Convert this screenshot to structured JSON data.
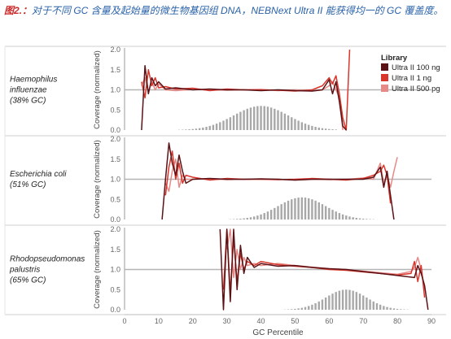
{
  "caption": {
    "prefix": "图2.：",
    "text": "对于不同 GC 含量及起始量的微生物基因组 DNA，NEBNext Ultra II 能获得均一的 GC 覆盖度。"
  },
  "chart_data": {
    "type": "line",
    "xlabel": "GC Percentile",
    "ylabel": "Coverage (normalized)",
    "xlim": [
      0,
      90
    ],
    "xticks": [
      "0",
      "10",
      "20",
      "30",
      "40",
      "50",
      "60",
      "70",
      "80",
      "90"
    ],
    "ylim": [
      0,
      2.0
    ],
    "yticks": [
      "0.0",
      "0.5",
      "1.0",
      "1.5",
      "2.0"
    ],
    "reference_line": 1.0,
    "grid": false,
    "legend": {
      "title": "Library",
      "placement": "top-right",
      "entries": [
        "Ultra II 100 ng",
        "Ultra II 1 ng",
        "Ultra II 500 pg"
      ]
    },
    "colors": {
      "Ultra II 100 ng": "#5a1216",
      "Ultra II 1 ng": "#d8362c",
      "Ultra II 500 pg": "#e58a86",
      "histogram": "#a8a8a8",
      "reference": "#b5b5b5"
    },
    "panels": [
      {
        "organism": "Haemophilus influenzae",
        "gc": "(38% GC)",
        "histogram": {
          "mean": 40,
          "sd": 8,
          "range": [
            10,
            62
          ],
          "peak": 0.6
        },
        "series": [
          {
            "name": "Ultra II 100 ng",
            "x": [
              5,
              6,
              7,
              8,
              9,
              10,
              12,
              15,
              20,
              25,
              30,
              35,
              40,
              45,
              50,
              55,
              58,
              60,
              61,
              62,
              63,
              64,
              65
            ],
            "y": [
              0.0,
              1.6,
              0.9,
              1.3,
              1.1,
              1.2,
              1.02,
              1.05,
              1.0,
              1.02,
              1.0,
              1.0,
              0.98,
              1.0,
              0.98,
              0.97,
              1.0,
              1.25,
              0.9,
              1.2,
              0.7,
              0.1,
              0.0
            ]
          },
          {
            "name": "Ultra II 1 ng",
            "x": [
              5,
              6,
              7,
              8,
              9,
              10,
              12,
              15,
              20,
              25,
              30,
              35,
              40,
              45,
              50,
              55,
              58,
              60,
              61,
              62,
              63,
              64,
              65,
              66
            ],
            "y": [
              1.2,
              0.8,
              1.5,
              1.1,
              1.3,
              1.05,
              1.08,
              1.02,
              1.04,
              0.98,
              1.02,
              1.0,
              1.0,
              0.99,
              0.97,
              1.0,
              1.1,
              1.3,
              1.15,
              1.35,
              0.9,
              0.3,
              0.0,
              2.0
            ]
          },
          {
            "name": "Ultra II 500 pg",
            "x": [
              5,
              6,
              7,
              8,
              9,
              10,
              12,
              15,
              20,
              25,
              30,
              35,
              40,
              45,
              50,
              55,
              58,
              60,
              61,
              62,
              63,
              64
            ],
            "y": [
              1.1,
              1.3,
              0.95,
              1.2,
              1.0,
              1.15,
              1.0,
              0.98,
              1.01,
              1.0,
              0.99,
              1.0,
              1.01,
              0.98,
              1.0,
              0.97,
              1.0,
              1.1,
              1.2,
              1.0,
              0.8,
              0.0
            ]
          }
        ]
      },
      {
        "organism": "Escherichia coli",
        "gc": "(51% GC)",
        "histogram": {
          "mean": 52,
          "sd": 7,
          "range": [
            20,
            78
          ],
          "peak": 0.55
        },
        "series": [
          {
            "name": "Ultra II 100 ng",
            "x": [
              11,
              12,
              13,
              14,
              15,
              16,
              17,
              18,
              20,
              25,
              30,
              35,
              40,
              45,
              50,
              55,
              60,
              65,
              70,
              73,
              75,
              76,
              77,
              78,
              79
            ],
            "y": [
              0.0,
              1.0,
              1.9,
              1.4,
              1.1,
              1.6,
              1.2,
              0.9,
              1.0,
              1.02,
              1.0,
              1.0,
              1.01,
              1.0,
              0.98,
              1.0,
              1.0,
              1.0,
              1.0,
              1.05,
              1.3,
              0.8,
              1.2,
              0.6,
              0.0
            ]
          },
          {
            "name": "Ultra II 1 ng",
            "x": [
              12,
              13,
              14,
              15,
              16,
              17,
              18,
              20,
              25,
              30,
              35,
              40,
              45,
              50,
              55,
              60,
              65,
              70,
              73,
              75,
              76,
              77,
              78
            ],
            "y": [
              0.6,
              1.3,
              1.7,
              1.0,
              1.4,
              0.9,
              1.1,
              1.05,
              0.98,
              1.02,
              1.0,
              1.0,
              0.99,
              1.0,
              1.02,
              1.0,
              0.98,
              1.02,
              1.1,
              1.2,
              1.35,
              1.1,
              0.4
            ]
          },
          {
            "name": "Ultra II 500 pg",
            "x": [
              12,
              13,
              14,
              15,
              16,
              17,
              18,
              20,
              25,
              30,
              35,
              40,
              45,
              50,
              55,
              60,
              65,
              70,
              73,
              75,
              76,
              77,
              78,
              79,
              80
            ],
            "y": [
              0.9,
              0.7,
              1.2,
              1.5,
              0.8,
              1.1,
              1.0,
              1.0,
              1.01,
              0.99,
              1.0,
              1.0,
              1.0,
              0.98,
              1.0,
              0.99,
              1.0,
              1.03,
              1.0,
              1.4,
              0.9,
              1.1,
              0.8,
              1.2,
              1.55
            ]
          }
        ]
      },
      {
        "organism": "Rhodopseudomonas palustris",
        "gc": "(65% GC)",
        "histogram": {
          "mean": 65,
          "sd": 6,
          "range": [
            35,
            88
          ],
          "peak": 0.5
        },
        "series": [
          {
            "name": "Ultra II 100 ng",
            "x": [
              28,
              29,
              30,
              31,
              32,
              33,
              34,
              35,
              36,
              38,
              40,
              45,
              50,
              55,
              60,
              65,
              70,
              75,
              80,
              85,
              86,
              87,
              88,
              89
            ],
            "y": [
              2.0,
              0.0,
              2.0,
              0.2,
              2.0,
              0.5,
              1.6,
              0.9,
              1.3,
              1.05,
              1.15,
              1.08,
              1.1,
              1.05,
              1.02,
              1.0,
              0.95,
              0.9,
              0.85,
              0.8,
              1.1,
              0.9,
              0.6,
              0.0
            ]
          },
          {
            "name": "Ultra II 1 ng",
            "x": [
              29,
              30,
              31,
              32,
              33,
              34,
              35,
              36,
              38,
              40,
              45,
              50,
              55,
              60,
              65,
              70,
              75,
              80,
              84,
              85,
              86,
              87,
              88
            ],
            "y": [
              0.5,
              2.0,
              0.4,
              1.8,
              0.7,
              1.4,
              1.0,
              1.2,
              1.1,
              1.2,
              1.12,
              1.08,
              1.05,
              1.0,
              0.98,
              0.94,
              0.9,
              0.86,
              0.9,
              1.2,
              0.7,
              1.1,
              0.3
            ]
          },
          {
            "name": "Ultra II 500 pg",
            "x": [
              30,
              31,
              32,
              33,
              34,
              35,
              36,
              38,
              40,
              45,
              50,
              55,
              60,
              65,
              70,
              75,
              80,
              84,
              85,
              86,
              87,
              88
            ],
            "y": [
              1.5,
              2.0,
              0.8,
              1.5,
              1.0,
              1.3,
              1.1,
              1.15,
              1.1,
              1.15,
              1.1,
              1.06,
              1.02,
              1.0,
              0.96,
              0.92,
              0.88,
              0.95,
              1.05,
              1.3,
              1.0,
              0.5
            ]
          }
        ]
      }
    ]
  }
}
